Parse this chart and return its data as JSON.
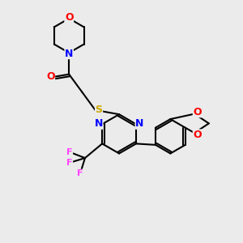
{
  "bg_color": "#ebebeb",
  "atom_colors": {
    "O": "#ff0000",
    "N": "#0000ff",
    "S": "#ccaa00",
    "F": "#ff44ff",
    "C": "#000000"
  },
  "bond_color": "#000000",
  "bond_width": 1.5,
  "font_size_atom": 9
}
